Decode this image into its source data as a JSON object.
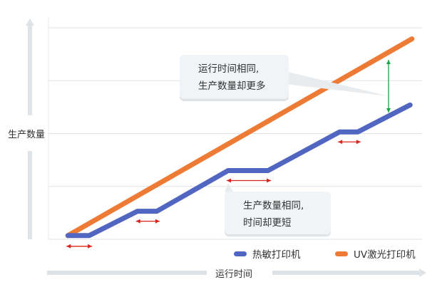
{
  "chart_data": {
    "type": "line",
    "xlabel": "运行时间",
    "ylabel": "生产数量",
    "xlim": [
      0,
      100
    ],
    "ylim": [
      0,
      4
    ],
    "grid": true,
    "legend_position": "bottom-right",
    "series": [
      {
        "name": "热敏打印机",
        "color": "#5166c0",
        "points": [
          [
            5.2,
            0.07
          ],
          [
            10.9,
            0.07
          ],
          [
            23.8,
            0.53
          ],
          [
            29,
            0.53
          ],
          [
            48.1,
            1.3
          ],
          [
            58.8,
            1.3
          ],
          [
            77.9,
            2.03
          ],
          [
            82.8,
            2.03
          ],
          [
            96.8,
            2.54
          ]
        ]
      },
      {
        "name": "UV激光打印机",
        "color": "#ee7b35",
        "points": [
          [
            5.2,
            0.07
          ],
          [
            97.3,
            3.79
          ]
        ]
      }
    ],
    "annotations": [
      {
        "text_lines": [
          "运行时间相同,",
          "生产数量却更多"
        ]
      },
      {
        "text_lines": [
          "生产数量相同,",
          "时间却更短"
        ]
      }
    ]
  }
}
